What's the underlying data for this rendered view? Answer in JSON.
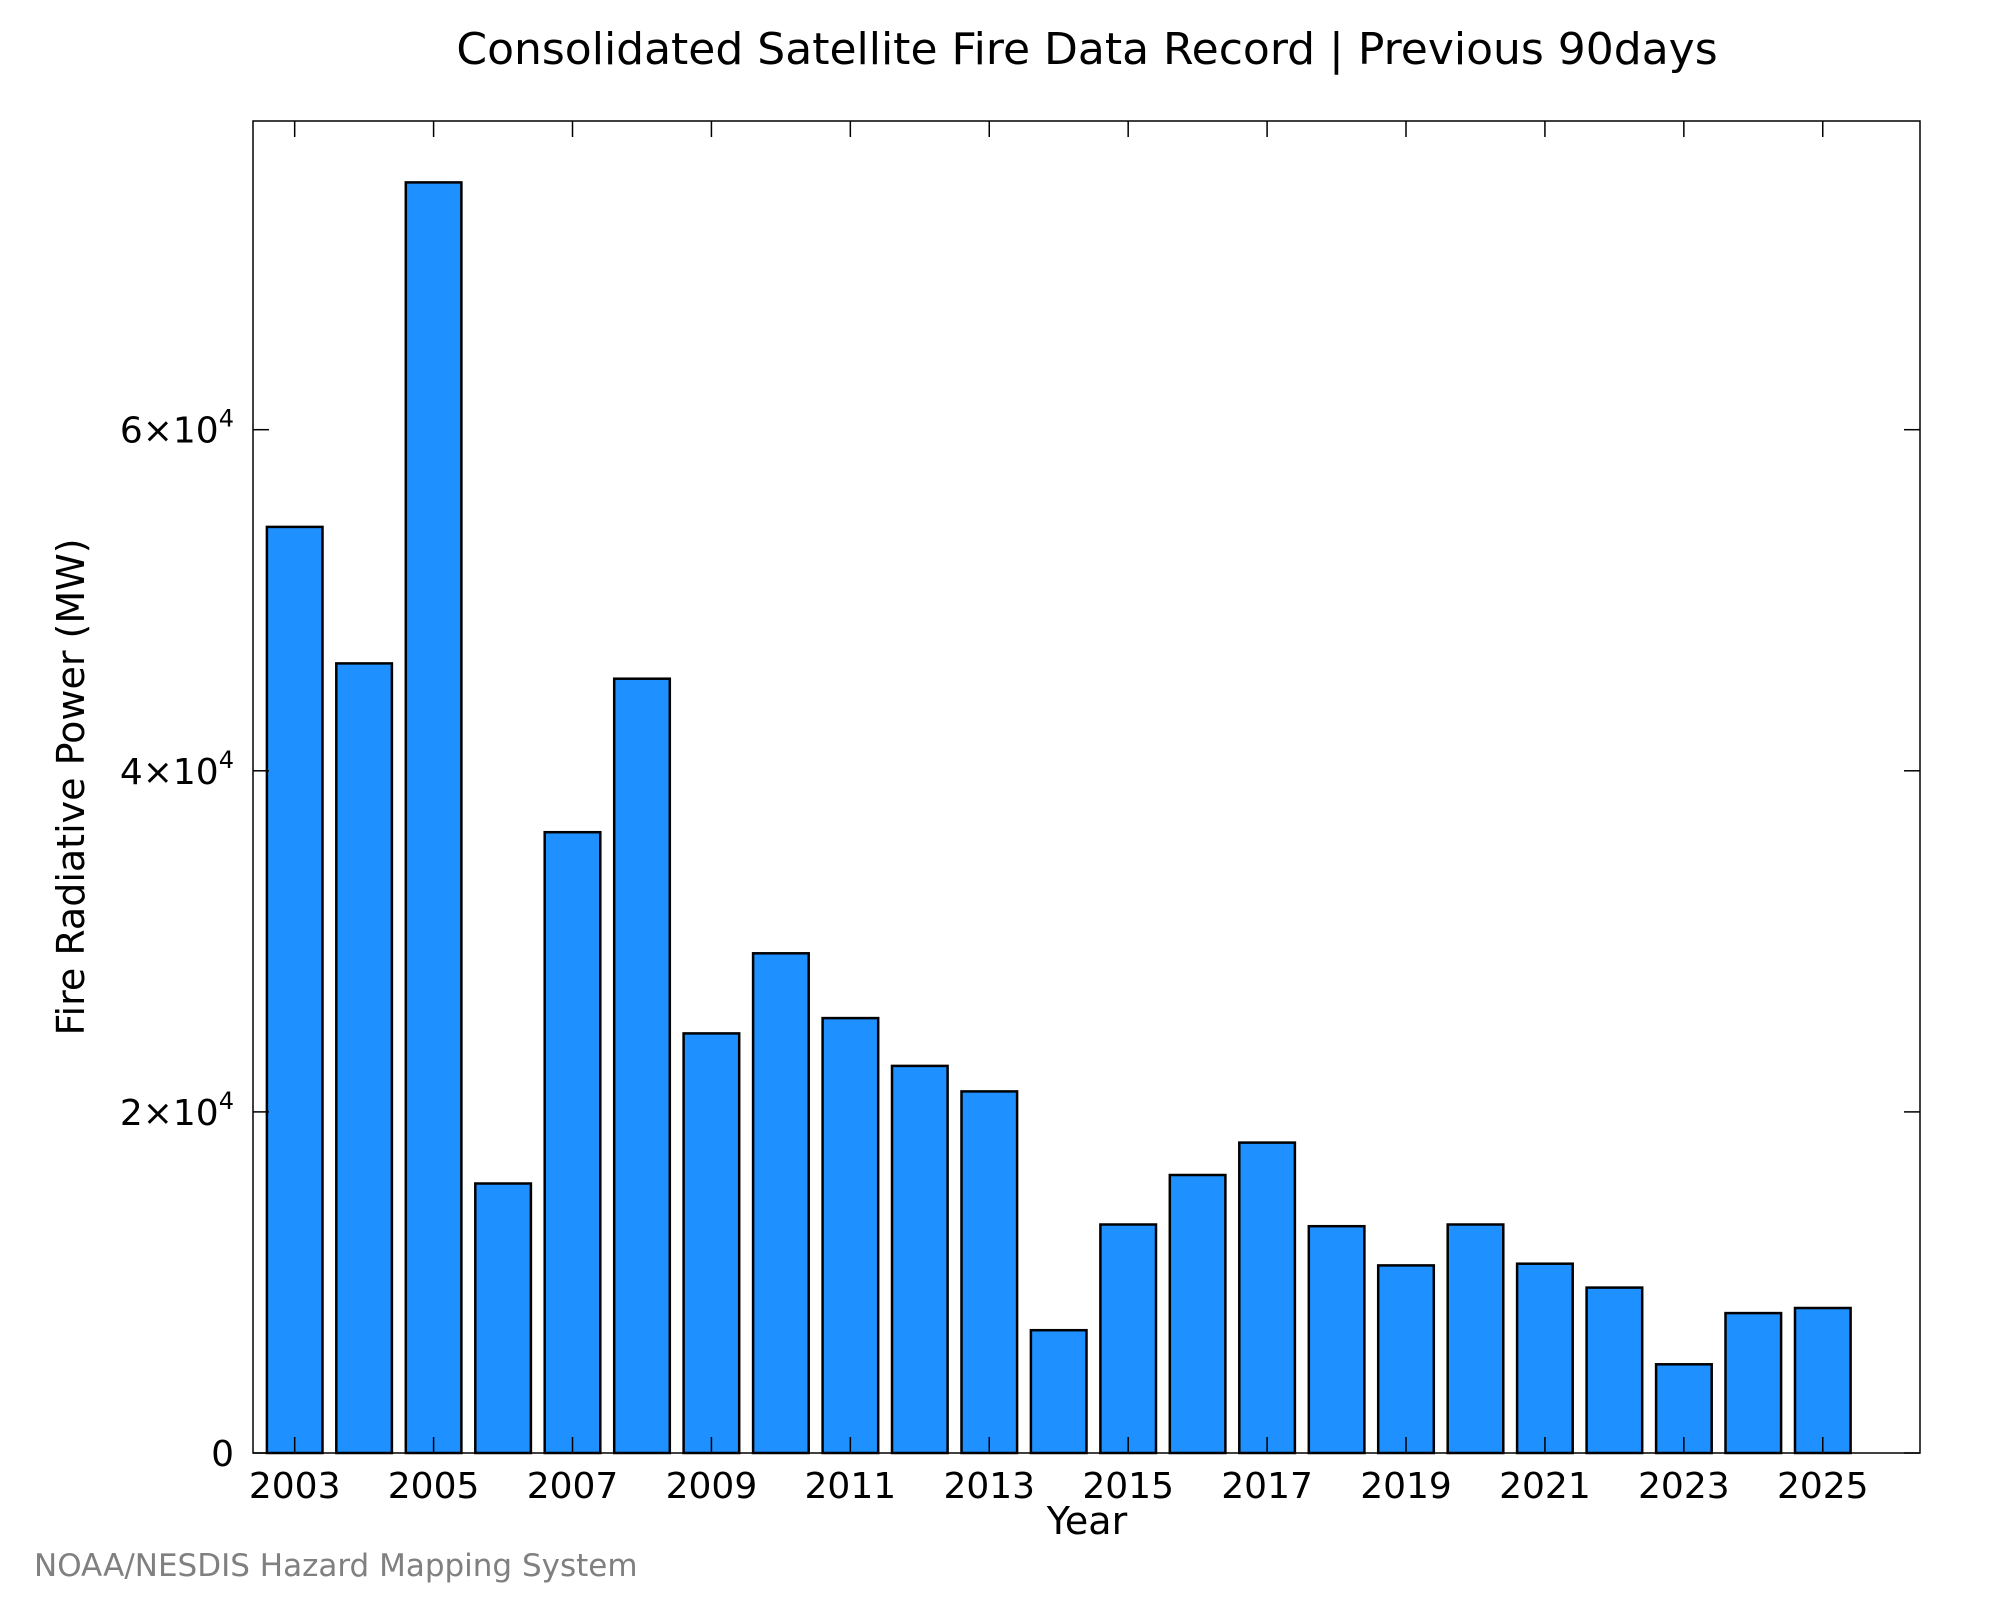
{
  "chart_data": {
    "type": "bar",
    "title": "Consolidated Satellite Fire Data Record | Previous 90days",
    "xlabel": "Year",
    "ylabel": "Fire Radiative Power (MW)",
    "categories": [
      "2003",
      "2004",
      "2005",
      "2006",
      "2007",
      "2008",
      "2009",
      "2010",
      "2011",
      "2012",
      "2013",
      "2014",
      "2015",
      "2016",
      "2017",
      "2018",
      "2019",
      "2020",
      "2021",
      "2022",
      "2023",
      "2024",
      "2025"
    ],
    "values": [
      54300,
      46300,
      74500,
      15800,
      36400,
      45400,
      24600,
      29300,
      25500,
      22700,
      21200,
      7200,
      13400,
      16300,
      18200,
      13300,
      11000,
      13400,
      11100,
      9700,
      5200,
      8200,
      8500
    ],
    "ylim": [
      0,
      78100
    ],
    "xlim": [
      2002.4,
      2026.4
    ],
    "x_tick_labels": [
      "2003",
      "2005",
      "2007",
      "2009",
      "2011",
      "2013",
      "2015",
      "2017",
      "2019",
      "2021",
      "2023",
      "2025"
    ],
    "y_ticks": [
      {
        "value": 0,
        "mantissa": "0",
        "exponent": ""
      },
      {
        "value": 20000,
        "mantissa": "2×10",
        "exponent": "4"
      },
      {
        "value": 40000,
        "mantissa": "4×10",
        "exponent": "4"
      },
      {
        "value": 60000,
        "mantissa": "6×10",
        "exponent": "4"
      }
    ],
    "grid": false,
    "bar_color": "#1E90FF",
    "bar_edge_color": "#000000"
  },
  "credit": "NOAA/NESDIS Hazard Mapping System"
}
